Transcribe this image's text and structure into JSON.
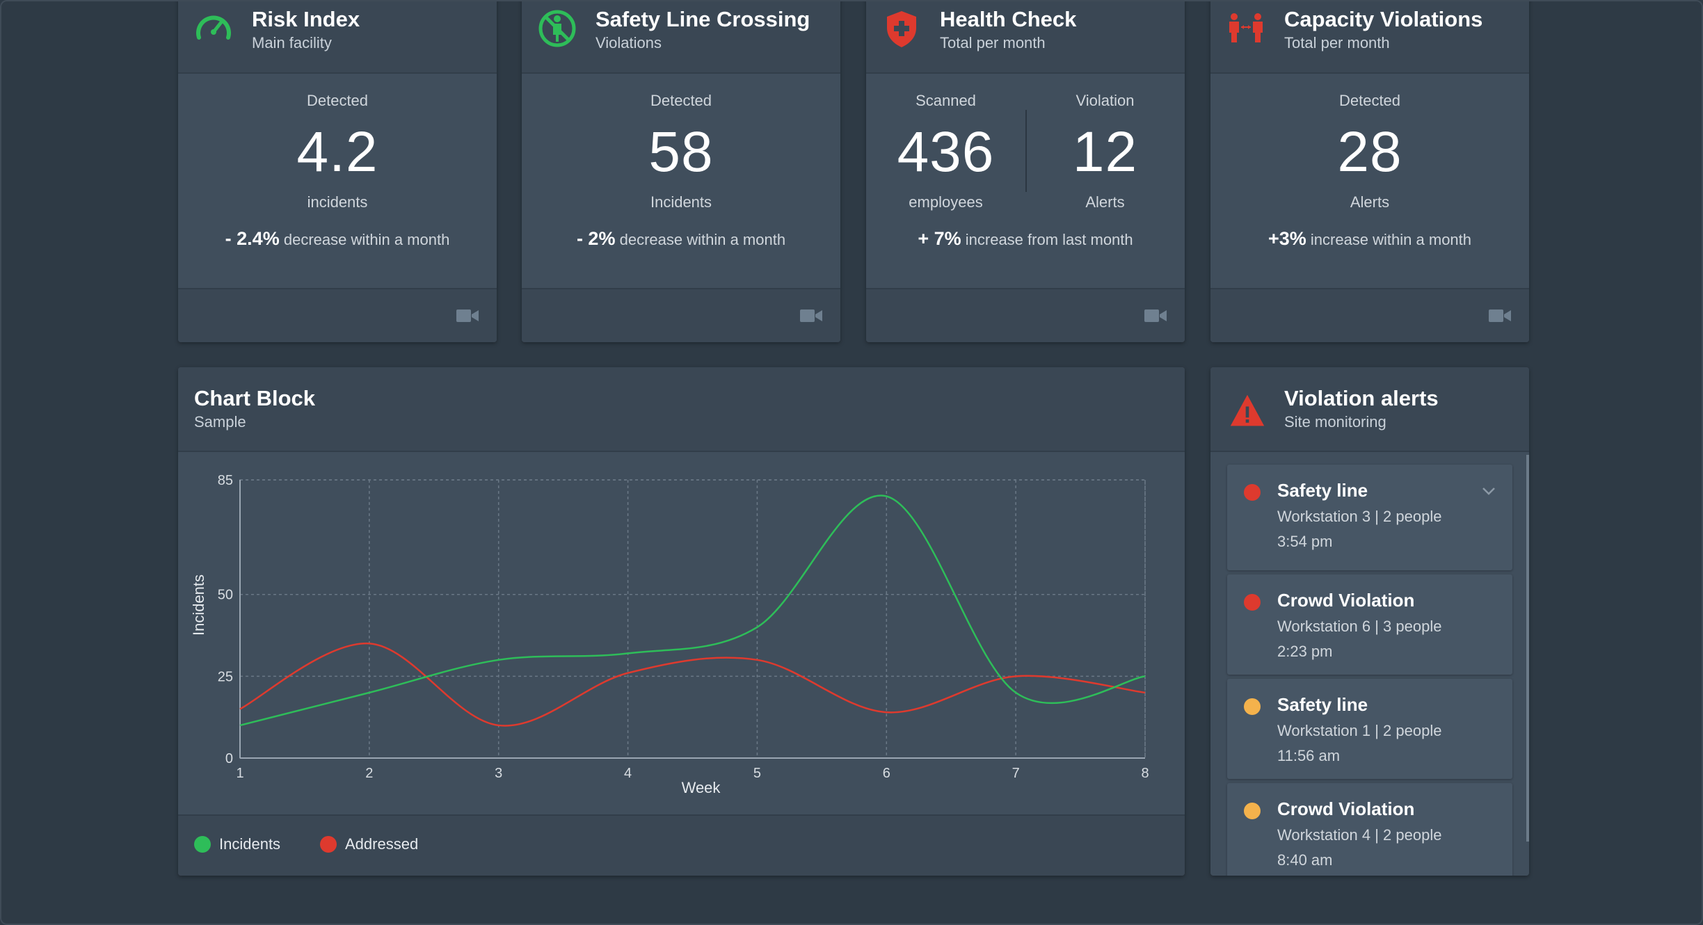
{
  "colors": {
    "green": "#2ebd59",
    "red": "#de3a2e",
    "amber": "#f4b24c",
    "icon_muted": "#6f8090"
  },
  "kpis": [
    {
      "title": "Risk Index",
      "subtitle": "Main facility",
      "icon": "gauge-icon",
      "label": "Detected",
      "value": "4.2",
      "unit": "incidents",
      "change": "- 2.4%",
      "change_text": "decrease within a month"
    },
    {
      "title": "Safety Line Crossing",
      "subtitle": "Violations",
      "icon": "no-entry-person-icon",
      "label": "Detected",
      "value": "58",
      "unit": "Incidents",
      "change": "- 2%",
      "change_text": "decrease within a month"
    },
    {
      "title": "Health Check",
      "subtitle": "Total per month",
      "icon": "medical-shield-icon",
      "left": {
        "label": "Scanned",
        "value": "436",
        "unit": "employees"
      },
      "right": {
        "label": "Violation",
        "value": "12",
        "unit": "Alerts"
      },
      "change": "+ 7%",
      "change_text": "increase from last month"
    },
    {
      "title": "Capacity Violations",
      "subtitle": "Total per month",
      "icon": "people-distance-icon",
      "label": "Detected",
      "value": "28",
      "unit": "Alerts",
      "change": "+3%",
      "change_text": "increase within a month"
    }
  ],
  "chart_block": {
    "title": "Chart Block",
    "subtitle": "Sample"
  },
  "chart_data": {
    "type": "line",
    "x": [
      1,
      2,
      3,
      4,
      5,
      6,
      7,
      8
    ],
    "xlabel": "Week",
    "ylabel": "Incidents",
    "xlim": [
      1,
      8
    ],
    "ylim": [
      0,
      85
    ],
    "yticks": [
      0,
      25,
      50,
      85
    ],
    "grid": true,
    "legend": "bottom-left",
    "series": [
      {
        "name": "Incidents",
        "color": "#2ebd59",
        "values": [
          10,
          20,
          30,
          32,
          40,
          80,
          20,
          25
        ]
      },
      {
        "name": "Addressed",
        "color": "#de3a2e",
        "values": [
          15,
          35,
          10,
          26,
          30,
          14,
          25,
          20
        ]
      }
    ]
  },
  "alerts": {
    "title": "Violation alerts",
    "subtitle": "Site monitoring",
    "items": [
      {
        "title": "Safety line",
        "meta": "Workstation 3 | 2 people",
        "time": "3:54 pm",
        "severity": "#de3a2e",
        "expandable": true
      },
      {
        "title": "Crowd Violation",
        "meta": "Workstation 6 | 3 people",
        "time": "2:23 pm",
        "severity": "#de3a2e",
        "expandable": false
      },
      {
        "title": "Safety line",
        "meta": "Workstation 1 | 2 people",
        "time": "11:56 am",
        "severity": "#f4b24c",
        "expandable": false
      },
      {
        "title": "Crowd Violation",
        "meta": "Workstation 4 | 2 people",
        "time": "8:40 am",
        "severity": "#f4b24c",
        "expandable": false
      }
    ]
  }
}
